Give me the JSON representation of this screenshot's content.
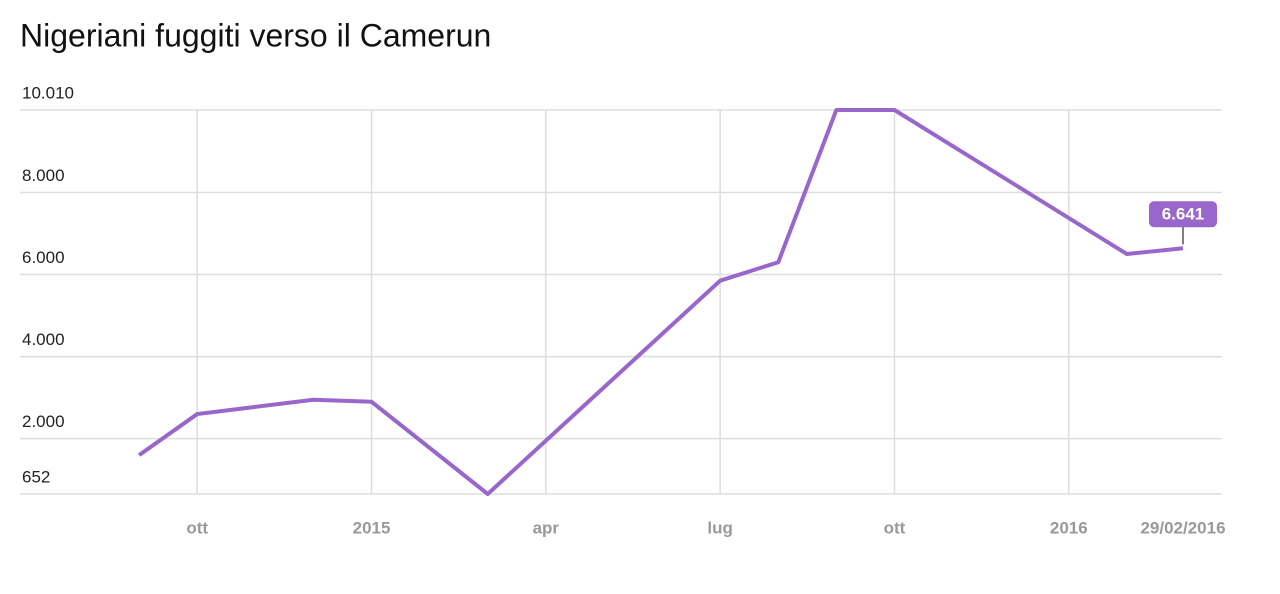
{
  "chart_data": {
    "type": "line",
    "title": "Nigeriani fuggiti verso il Camerun",
    "x": [
      "2014-09",
      "2014-10",
      "2014-12",
      "2015-01",
      "2015-03",
      "2015-07",
      "2015-08",
      "2015-09",
      "2015-10",
      "2016-02",
      "2016-02-29"
    ],
    "values": [
      1600,
      2600,
      2950,
      2900,
      652,
      5850,
      6300,
      10010,
      10010,
      6500,
      6641
    ],
    "value_labels": [
      null,
      null,
      null,
      null,
      null,
      null,
      null,
      null,
      null,
      null,
      "6.641"
    ],
    "color": "#9966cc",
    "xlim": [
      "2014-08",
      "2016-03"
    ],
    "xticks": [
      {
        "value": "2014-10",
        "label": "ott"
      },
      {
        "value": "2015-01",
        "label": "2015"
      },
      {
        "value": "2015-04",
        "label": "apr"
      },
      {
        "value": "2015-07",
        "label": "lug"
      },
      {
        "value": "2015-10",
        "label": "ott"
      },
      {
        "value": "2016-01",
        "label": "2016"
      },
      {
        "value": "2016-02-29",
        "label": "29/02/2016"
      }
    ],
    "ylim": [
      652,
      10010
    ],
    "yticks": [
      652,
      {
        "value": 2000,
        "label": "2.000"
      },
      {
        "value": 4000,
        "label": "4.000"
      },
      {
        "value": 6000,
        "label": "6.000"
      },
      {
        "value": 8000,
        "label": "8.000"
      },
      {
        "value": 10010,
        "label": "10.010"
      }
    ],
    "grid": true
  }
}
